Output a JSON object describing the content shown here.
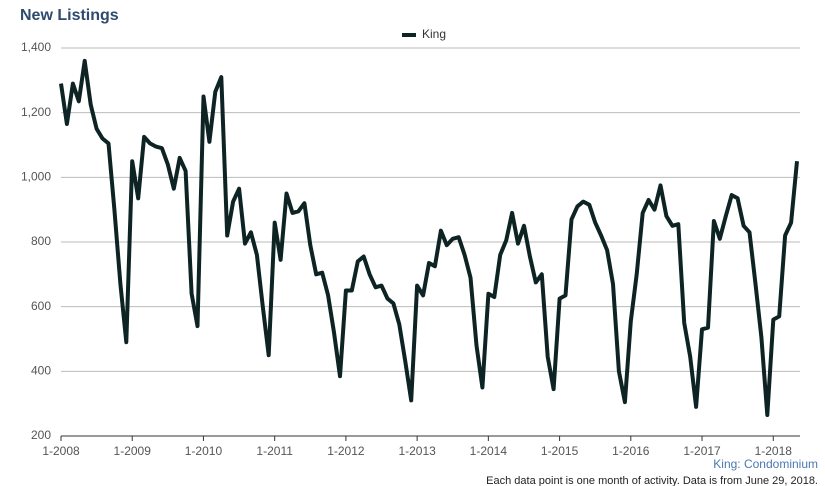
{
  "chart_data": {
    "type": "line",
    "title": "New Listings",
    "categories": [
      "1-2008",
      null,
      null,
      null,
      null,
      null,
      null,
      null,
      null,
      null,
      null,
      null,
      "1-2009",
      null,
      null,
      null,
      null,
      null,
      null,
      null,
      null,
      null,
      null,
      null,
      "1-2010",
      null,
      null,
      null,
      null,
      null,
      null,
      null,
      null,
      null,
      null,
      null,
      "1-2011",
      null,
      null,
      null,
      null,
      null,
      null,
      null,
      null,
      null,
      null,
      null,
      "1-2012",
      null,
      null,
      null,
      null,
      null,
      null,
      null,
      null,
      null,
      null,
      null,
      "1-2013",
      null,
      null,
      null,
      null,
      null,
      null,
      null,
      null,
      null,
      null,
      null,
      "1-2014",
      null,
      null,
      null,
      null,
      null,
      null,
      null,
      null,
      null,
      null,
      null,
      "1-2015",
      null,
      null,
      null,
      null,
      null,
      null,
      null,
      null,
      null,
      null,
      null,
      "1-2016",
      null,
      null,
      null,
      null,
      null,
      null,
      null,
      null,
      null,
      null,
      null,
      "1-2017",
      null,
      null,
      null,
      null,
      null,
      null,
      null,
      null,
      null,
      null,
      null,
      "1-2018",
      null,
      null,
      null,
      null
    ],
    "series": [
      {
        "name": "King",
        "color": "#0e2424",
        "values": [
          1290,
          1165,
          1290,
          1235,
          1360,
          1225,
          1150,
          1120,
          1105,
          900,
          670,
          490,
          1050,
          935,
          1125,
          1105,
          1095,
          1090,
          1040,
          965,
          1060,
          1020,
          640,
          540,
          1250,
          1110,
          1265,
          1310,
          820,
          925,
          965,
          795,
          830,
          760,
          600,
          450,
          860,
          745,
          950,
          890,
          895,
          920,
          790,
          700,
          705,
          635,
          520,
          385,
          650,
          650,
          740,
          755,
          700,
          660,
          665,
          625,
          610,
          545,
          430,
          310,
          665,
          635,
          735,
          725,
          835,
          790,
          810,
          815,
          760,
          690,
          480,
          350,
          640,
          630,
          760,
          805,
          890,
          795,
          850,
          755,
          675,
          700,
          445,
          345,
          625,
          635,
          870,
          910,
          925,
          915,
          860,
          820,
          775,
          670,
          400,
          305,
          555,
          700,
          890,
          930,
          900,
          975,
          880,
          850,
          855,
          550,
          445,
          290,
          530,
          535,
          865,
          810,
          880,
          945,
          935,
          850,
          830,
          670,
          505,
          265,
          560,
          570,
          820,
          860,
          1050
        ]
      }
    ],
    "ylim": [
      200,
      1400
    ],
    "yticks": [
      200,
      400,
      600,
      800,
      {
        "value": 1000,
        "label": "1,000"
      },
      {
        "value": 1200,
        "label": "1,200"
      },
      {
        "value": 1400,
        "label": "1,400"
      }
    ],
    "grid": true,
    "legend": "top",
    "annotations": [
      "King: Condominium",
      "Each data point is one month of activity. Data is from June 29, 2018."
    ]
  }
}
